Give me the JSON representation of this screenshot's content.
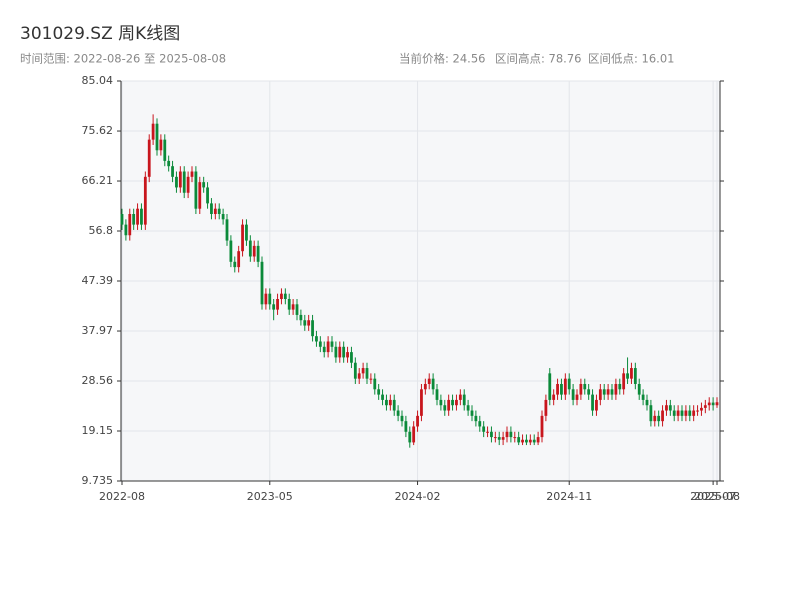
{
  "chart_data": {
    "type": "candlestick",
    "title": "301029.SZ 周K线图",
    "subtitle": "时间范围: 2022-08-26 至 2025-08-08",
    "annotations": [
      "当前价格: 24.56",
      "区间高点: 78.76",
      "区间低点: 16.01"
    ],
    "up_color": "#c8161d",
    "down_color": "#0b8a3a",
    "ylim": [
      9.735,
      85.04
    ],
    "yticks": [
      9.735,
      19.15,
      28.56,
      37.97,
      47.39,
      56.8,
      66.21,
      75.62,
      85.04
    ],
    "xlim": [
      0,
      153
    ],
    "xticks": [
      {
        "value": 0,
        "label": "2022-08"
      },
      {
        "value": 38,
        "label": "2023-05"
      },
      {
        "value": 76,
        "label": "2024-02"
      },
      {
        "value": 115,
        "label": "2024-11"
      },
      {
        "value": 152,
        "label": "2025-07"
      },
      {
        "value": 153,
        "label": "2025-08"
      }
    ],
    "grid": true,
    "open": [
      60,
      58,
      56,
      60,
      58,
      61,
      58,
      67,
      74,
      77,
      72,
      74,
      70,
      69,
      67,
      65,
      68,
      64,
      67,
      68,
      61,
      66,
      65,
      62,
      60,
      61,
      60,
      59,
      55,
      51,
      50,
      53,
      58,
      55,
      52,
      54,
      51,
      43,
      45,
      43,
      42,
      44,
      45,
      44,
      42,
      43,
      41,
      40,
      39,
      40,
      37,
      36,
      35,
      34,
      36,
      35,
      33,
      35,
      33,
      34,
      32,
      29,
      30,
      31,
      29,
      29,
      27,
      26,
      25,
      24,
      25,
      23,
      22,
      21,
      19,
      17,
      20,
      22,
      27,
      28,
      29,
      27,
      25,
      24,
      23,
      25,
      24,
      25,
      26,
      24,
      23,
      22,
      21,
      20,
      19,
      19,
      18,
      18,
      17.5,
      18,
      19,
      18,
      18,
      17,
      17.5,
      17,
      17.5,
      17,
      18,
      22,
      30,
      25,
      26,
      28,
      26,
      29,
      27,
      25,
      26,
      28,
      27,
      26,
      23,
      25,
      27,
      26,
      27,
      26,
      28,
      27,
      30,
      29,
      31,
      28,
      26,
      25,
      24,
      21,
      22,
      21,
      23,
      24,
      23,
      22,
      23,
      22,
      23,
      22,
      23,
      23,
      23.5,
      24,
      24.5,
      24
    ],
    "high": [
      61,
      59,
      61,
      61,
      62,
      62,
      68,
      75,
      78.76,
      78,
      75,
      75,
      71,
      70,
      68,
      69,
      69,
      68,
      69,
      69,
      67,
      67,
      66,
      63,
      62,
      62,
      61,
      60,
      56,
      52,
      54,
      59,
      59,
      56,
      55,
      55,
      52,
      46,
      46,
      44,
      45,
      46,
      46,
      45,
      44,
      44,
      42,
      41,
      41,
      41,
      38,
      37,
      36,
      37,
      37,
      36,
      36,
      36,
      35,
      35,
      33,
      31,
      32,
      32,
      30,
      30,
      28,
      27,
      26,
      26,
      26,
      24,
      23,
      22,
      20,
      21,
      23,
      28,
      29,
      30,
      30,
      28,
      26,
      25,
      26,
      26,
      26,
      27,
      27,
      25,
      24,
      23,
      22,
      21,
      20,
      20,
      19,
      19,
      19,
      20,
      20,
      19,
      19,
      18.5,
      18.5,
      18.5,
      18.5,
      19,
      23,
      26,
      31,
      27,
      29,
      29,
      30,
      30,
      28,
      27,
      29,
      29,
      28,
      27,
      26,
      28,
      28,
      28,
      28,
      29,
      29,
      31,
      33,
      32,
      32,
      29,
      27,
      26,
      25,
      23,
      23,
      24,
      25,
      25,
      24,
      24,
      24,
      24,
      24,
      24,
      24,
      24.5,
      25,
      25.5,
      25.5,
      25.5
    ],
    "low": [
      57,
      55,
      55,
      57,
      57,
      57,
      57,
      66,
      73,
      71,
      71,
      69,
      68,
      66,
      64,
      64,
      63,
      63,
      66,
      60,
      60,
      64,
      61,
      59,
      59,
      59,
      58,
      54,
      50,
      49,
      49,
      52,
      54,
      51,
      51,
      50,
      42,
      42,
      42,
      40,
      41,
      43,
      43,
      41,
      41,
      40,
      39,
      38,
      38,
      36,
      35,
      34,
      33,
      33,
      34,
      32,
      32,
      32,
      32,
      31,
      28,
      28,
      29,
      28,
      28,
      26,
      25,
      24,
      23,
      23,
      22,
      21,
      20,
      18,
      16.01,
      16.5,
      19,
      21,
      26,
      27,
      26,
      24,
      23,
      22,
      22,
      23,
      23,
      24,
      23,
      22,
      21,
      20,
      19,
      18,
      18,
      17,
      17,
      16.5,
      16.5,
      17,
      17,
      17,
      16.5,
      16.5,
      16.5,
      16.5,
      16.5,
      16.5,
      17,
      21,
      24,
      24,
      25,
      25,
      25,
      26,
      24,
      24,
      25,
      26,
      25,
      22,
      22,
      24,
      25,
      25,
      25,
      25,
      26,
      26,
      28,
      28,
      27,
      25,
      24,
      23,
      20,
      20,
      20,
      20,
      22,
      22,
      21,
      21,
      21,
      21,
      21,
      21,
      22,
      22,
      22.5,
      23,
      23,
      23.5
    ],
    "close": [
      58,
      56,
      60,
      58,
      61,
      58,
      67,
      74,
      77,
      72,
      74,
      70,
      69,
      67,
      65,
      68,
      64,
      67,
      68,
      61,
      66,
      65,
      62,
      60,
      61,
      60,
      59,
      55,
      51,
      50,
      53,
      58,
      55,
      52,
      54,
      51,
      43,
      45,
      43,
      42,
      44,
      45,
      44,
      42,
      43,
      41,
      40,
      39,
      40,
      37,
      36,
      35,
      34,
      36,
      35,
      33,
      35,
      33,
      34,
      32,
      29,
      30,
      31,
      29,
      29,
      27,
      26,
      25,
      24,
      25,
      23,
      22,
      21,
      19,
      17,
      20,
      22,
      27,
      28,
      29,
      27,
      25,
      24,
      23,
      25,
      24,
      25,
      26,
      24,
      23,
      22,
      21,
      20,
      19,
      19,
      18,
      18,
      17.5,
      18,
      19,
      18,
      18,
      17,
      17.5,
      17,
      17.5,
      17,
      18,
      22,
      25,
      25,
      26,
      28,
      26,
      29,
      27,
      25,
      26,
      28,
      27,
      26,
      23,
      25,
      27,
      26,
      27,
      26,
      28,
      27,
      30,
      29,
      31,
      28,
      26,
      25,
      24,
      21,
      22,
      21,
      23,
      24,
      23,
      22,
      23,
      22,
      23,
      22,
      23,
      23,
      23.5,
      24,
      24.5,
      24,
      24.56
    ]
  }
}
